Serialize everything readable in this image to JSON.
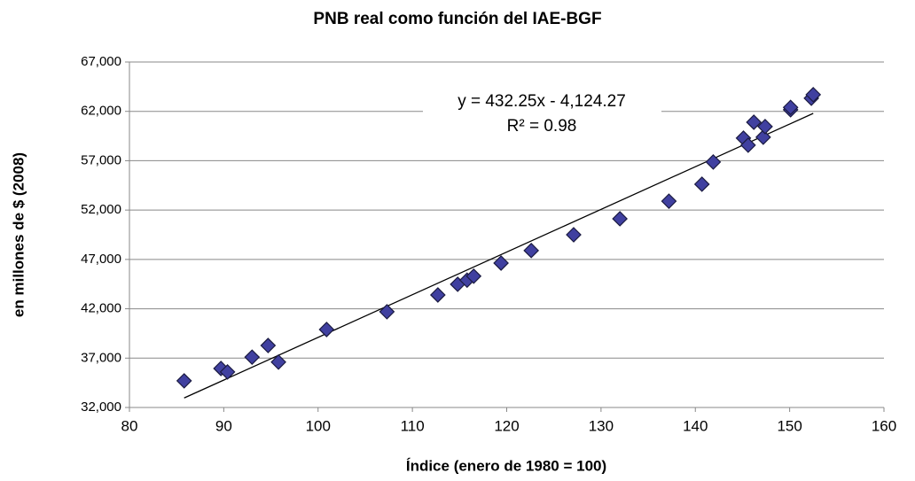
{
  "chart_data": {
    "type": "scatter",
    "title": "PNB real como función del IAE-BGF",
    "x_label": "Índice (enero de 1980 = 100)",
    "y_label": "en millones de $ (2008)",
    "series": [
      {
        "color": "#4040a0",
        "x": [
          85.8,
          89.7,
          90.4,
          93.0,
          94.7,
          95.8,
          100.9,
          107.3,
          112.7,
          114.8,
          115.8,
          116.5,
          119.4,
          122.6,
          127.1,
          132.0,
          137.2,
          140.7,
          141.9,
          145.1,
          145.6,
          146.2,
          147.2,
          147.4,
          150.1,
          150.1,
          152.3,
          152.5
        ],
        "values": [
          34700,
          35950,
          35600,
          37100,
          38280,
          36600,
          39900,
          41700,
          43400,
          44480,
          44900,
          45300,
          46630,
          47900,
          49500,
          51120,
          52900,
          54620,
          56870,
          59290,
          58570,
          60900,
          59380,
          60460,
          62160,
          62400,
          63330,
          63690
        ]
      }
    ],
    "trendline": {
      "equation": "y = 432.25x - 4,124.27",
      "r_squared": "R² = 0.98",
      "slope": 432.25,
      "intercept": -4124.27,
      "color": "#000000"
    },
    "xlim": [
      80,
      160
    ],
    "xticks": [
      80,
      90,
      100,
      110,
      120,
      130,
      140,
      150,
      160
    ],
    "ylim": [
      32000,
      67000
    ],
    "yticks": [
      {
        "value": 32000,
        "label": "32,000"
      },
      {
        "value": 37000,
        "label": "37,000"
      },
      {
        "value": 42000,
        "label": "42,000"
      },
      {
        "value": 47000,
        "label": "47,000"
      },
      {
        "value": 52000,
        "label": "52,000"
      },
      {
        "value": 57000,
        "label": "57,000"
      },
      {
        "value": 62000,
        "label": "62,000"
      },
      {
        "value": 67000,
        "label": "67,000"
      }
    ],
    "grid": true
  }
}
